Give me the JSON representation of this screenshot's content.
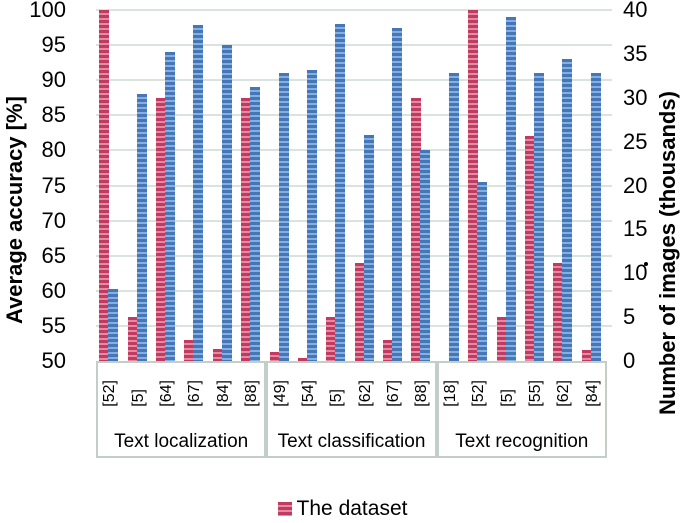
{
  "chart_data": {
    "type": "bar",
    "title": "",
    "left_axis": {
      "label": "Average accuracy [%]",
      "min": 50,
      "max": 100,
      "tick_step": 5,
      "ticks": [
        "100",
        "95",
        "90",
        "85",
        "80",
        "75",
        "70",
        "65",
        "60",
        "55",
        "50"
      ]
    },
    "right_axis": {
      "label": "Number of images (thousands)",
      "min": 0,
      "max": 40,
      "tick_step": 5,
      "ticks": [
        "40",
        "35",
        "30",
        "25",
        "20",
        "15",
        "10",
        "5",
        "0"
      ],
      "stray_dot": "."
    },
    "groups": [
      {
        "label": "Text localization",
        "refs": [
          "[52]",
          "[5]",
          "[64]",
          "[67]",
          "[84]",
          "[88]"
        ]
      },
      {
        "label": "Text classification",
        "refs": [
          "[49]",
          "[54]",
          "[5]",
          "[62]",
          "[67]",
          "[88]"
        ]
      },
      {
        "label": "Text recognition",
        "refs": [
          "[18]",
          "[52]",
          "[5]",
          "[55]",
          "[62]",
          "[84]"
        ]
      }
    ],
    "series": [
      {
        "id": "dataset",
        "legend_label": "The dataset",
        "axis": "right",
        "unit": "thousands of images",
        "values_by_group": [
          [
            40,
            5,
            30,
            2.4,
            1.4,
            30
          ],
          [
            1,
            0.3,
            5,
            11.2,
            2.4,
            30
          ],
          [
            0,
            40,
            5,
            25.6,
            11.2,
            1.2
          ]
        ]
      },
      {
        "id": "accuracy",
        "legend_label": "",
        "axis": "left",
        "unit": "%",
        "values_by_group": [
          [
            60.2,
            88,
            94,
            97.8,
            95,
            89
          ],
          [
            91,
            91.5,
            98,
            82.2,
            97.5,
            80
          ],
          [
            91,
            75.5,
            99,
            91,
            93,
            91
          ]
        ]
      }
    ],
    "grid": true,
    "legend_position": "bottom"
  },
  "colors": {
    "background": "#ffffff",
    "text": "#000000",
    "grid": "#dbe3df",
    "axis_box_border": "#c3cec8",
    "red_dark": "#c23a61",
    "red_light": "#e18ca1",
    "blue_dark": "#4576b8",
    "blue_light": "#85afdf"
  }
}
